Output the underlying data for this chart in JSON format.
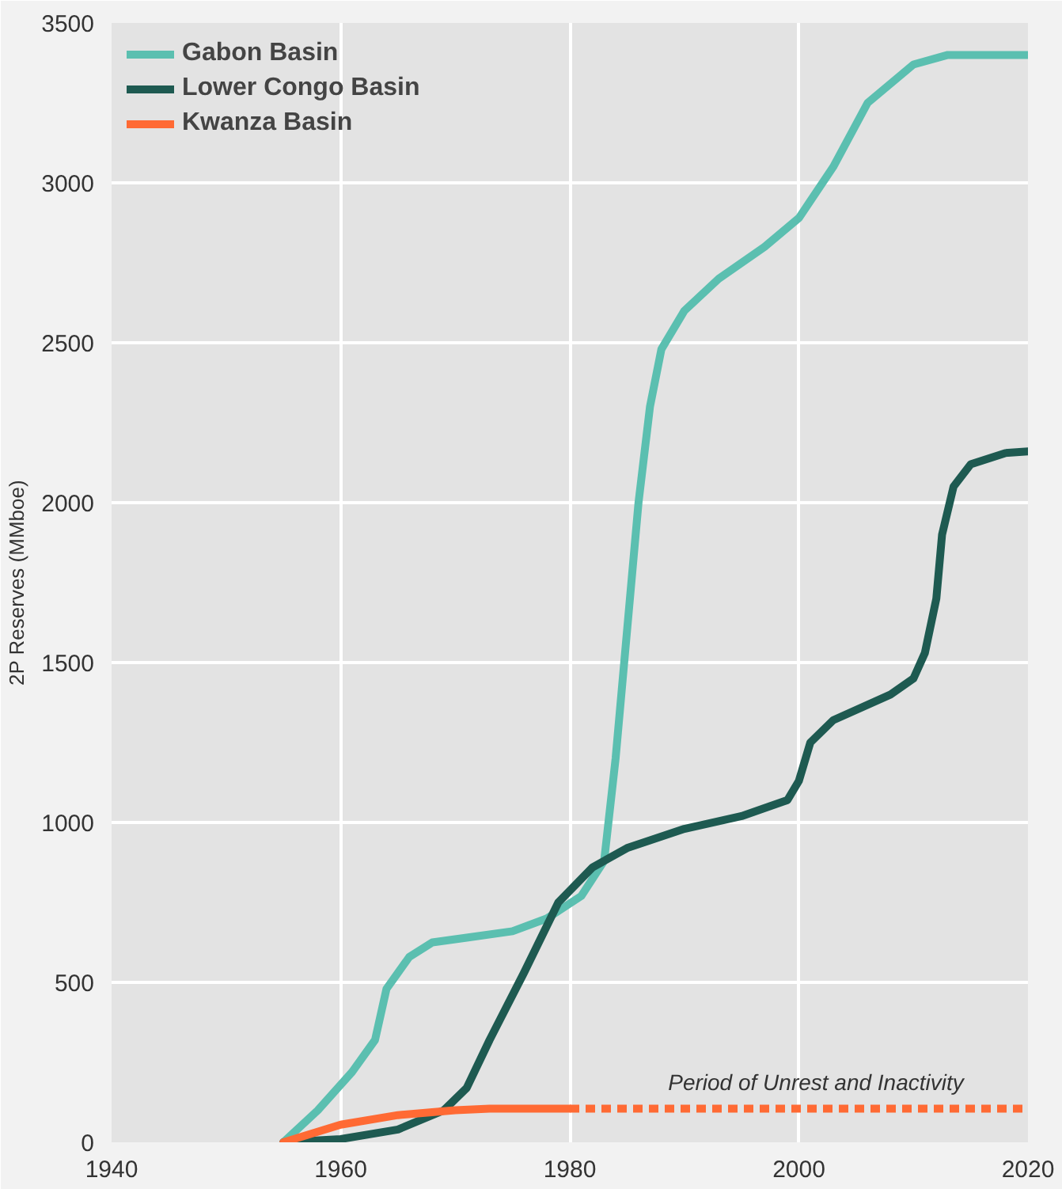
{
  "chart_data": {
    "type": "line",
    "ylabel": "2P Reserves (MMboe)",
    "xlim": [
      1940,
      2020
    ],
    "xticks": [
      1940,
      1960,
      1980,
      2000,
      2020
    ],
    "ylim": [
      0,
      3500
    ],
    "yticks": [
      0,
      500,
      1000,
      1500,
      2000,
      2500,
      3000,
      3500
    ],
    "grid": true,
    "legend": "top left",
    "line_style": "solid",
    "series": [
      {
        "name": "Gabon Basin",
        "color": "#5bbfb0",
        "x": [
          1955,
          1958,
          1961,
          1963,
          1964,
          1966,
          1968,
          1971,
          1975,
          1978,
          1981,
          1983,
          1984,
          1985,
          1986,
          1987,
          1988,
          1990,
          1993,
          1997,
          2000,
          2003,
          2006,
          2010,
          2013,
          2020
        ],
        "values": [
          0,
          100,
          220,
          320,
          480,
          580,
          625,
          640,
          660,
          700,
          770,
          880,
          1200,
          1600,
          2000,
          2300,
          2480,
          2600,
          2700,
          2800,
          2890,
          3050,
          3250,
          3370,
          3400,
          3400
        ]
      },
      {
        "name": "Lower Congo Basin",
        "color": "#1e5a51",
        "x": [
          1955,
          1960,
          1965,
          1969,
          1971,
          1973,
          1976,
          1979,
          1982,
          1985,
          1990,
          1995,
          1999,
          2000,
          2001,
          2003,
          2008,
          2010,
          2011,
          2012,
          2012.5,
          2013.5,
          2015,
          2018,
          2020
        ],
        "values": [
          0,
          10,
          40,
          100,
          170,
          320,
          530,
          750,
          860,
          920,
          980,
          1020,
          1070,
          1130,
          1250,
          1320,
          1400,
          1450,
          1530,
          1700,
          1900,
          2050,
          2120,
          2155,
          2160
        ]
      },
      {
        "name": "Kwanza Basin",
        "color": "#ff6a34",
        "x": [
          1955,
          1960,
          1965,
          1970,
          1973,
          1980
        ],
        "values": [
          0,
          55,
          85,
          100,
          105,
          105
        ]
      },
      {
        "color": "#ff6a34",
        "line_style": "dashed",
        "x": [
          1980,
          2020
        ],
        "values": [
          105,
          105
        ]
      }
    ],
    "annotations": [
      "Period of Unrest and Inactivity"
    ]
  }
}
